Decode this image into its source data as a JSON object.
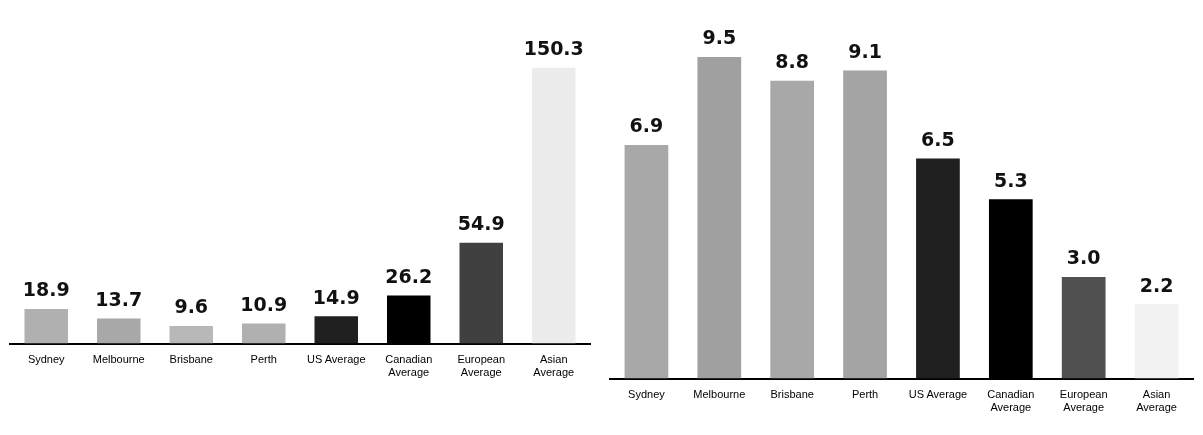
{
  "chart_data": [
    {
      "type": "bar",
      "categories": [
        "Sydney",
        "Melbourne",
        "Brisbane",
        "Perth",
        "US Average",
        "Canadian Average",
        "European Average",
        "Asian Average"
      ],
      "values": [
        18.9,
        13.7,
        9.6,
        10.9,
        14.9,
        26.2,
        54.9,
        150.3
      ],
      "colors": [
        "#b0b0b0",
        "#a8a8a8",
        "#b8b8b8",
        "#b0b0b0",
        "#202020",
        "#000000",
        "#404040",
        "#ececec"
      ],
      "data_labels": true,
      "grid": false,
      "legend": false
    },
    {
      "type": "bar",
      "categories": [
        "Sydney",
        "Melbourne",
        "Brisbane",
        "Perth",
        "US Average",
        "Canadian Average",
        "European Average",
        "Asian Average"
      ],
      "values": [
        6.9,
        9.5,
        8.8,
        9.1,
        6.5,
        5.3,
        3.0,
        2.2
      ],
      "value_labels": [
        "6.9",
        "9.5",
        "8.8",
        "9.1",
        "6.5",
        "5.3",
        "3.0",
        "2.2"
      ],
      "colors": [
        "#a8a8a8",
        "#a0a0a0",
        "#a8a8a8",
        "#a4a4a4",
        "#202020",
        "#000000",
        "#505050",
        "#f2f2f2"
      ],
      "data_labels": true,
      "grid": false,
      "legend": false
    }
  ]
}
